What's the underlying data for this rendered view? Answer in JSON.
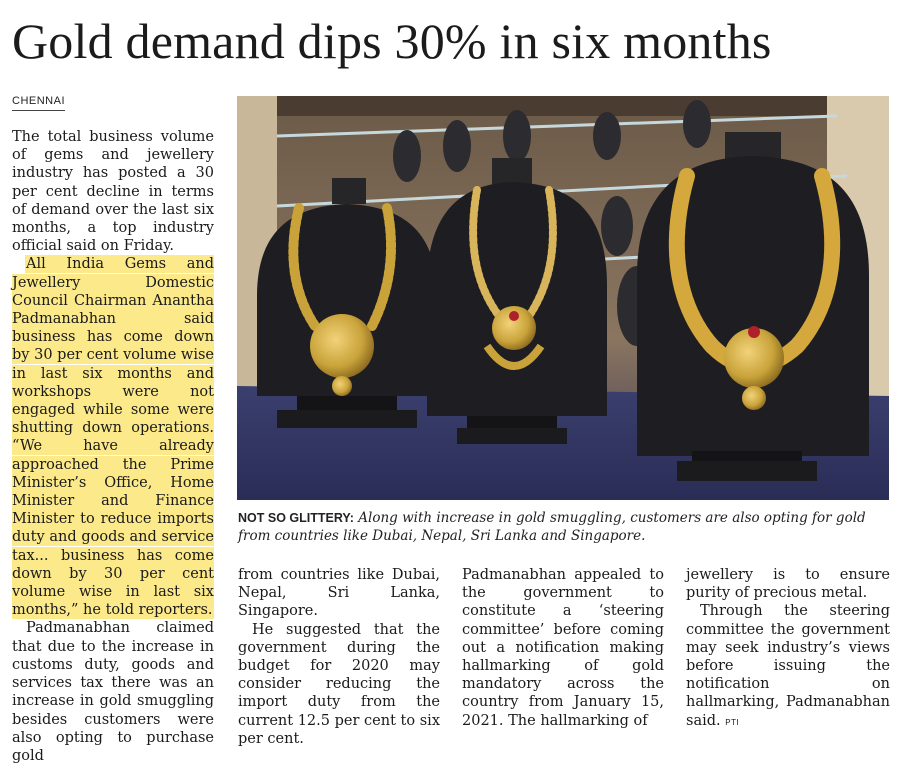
{
  "headline": "Gold demand dips 30% in six months",
  "dateline": "CHENNAI",
  "photo": {
    "caption_tag": "NOT SO GLITTERY:",
    "caption_text": " Along with increase in gold smuggling, customers are also opting for gold from countries like Dubai, Nepal, Sri Lanka and Singapore."
  },
  "article": {
    "p1": "The total business volume of gems and jewellery industry has posted a 30 per cent decline in terms of demand over the last six months, a top industry official said on Friday.",
    "p2": "All India Gems and Jewellery Domestic Council Chairman Anantha Padmanabhan said business has come down by 30 per cent volume wise in last six months and workshops were not engaged while some were shutting down operations. “We have already approached the Prime Minister’s Office, Home Minister and Finance Minister to reduce imports duty and goods and service tax... business has come down by 30 per cent volume wise in last six months,” he told reporters.",
    "p3": "Padmanabhan claimed that due to the increase in customs duty, goods and services tax there was an increase in gold smuggling besides customers were also opting to purchase gold",
    "p3_cont": "from countries like Dubai, Nepal, Sri Lanka, Singapore.",
    "p4": "He suggested that the government during the budget for 2020 may consider reducing the import duty from the current 12.5 per cent to six per cent.",
    "p5": "Padmanabhan appealed to the government to constitute a ‘steering committee’ before coming out a notification making hallmarking of gold mandatory across the country from January 15, 2021. The hallmarking of",
    "p5_cont": "jewellery is to ensure purity of precious metal.",
    "p6": "Through the steering committee the government may seek industry’s views before issuing the notification on hallmarking, Padmanabhan said.",
    "credit": "PTI"
  },
  "colors": {
    "highlight": "#fbe98a",
    "display_bust": "#1e1e22",
    "gold": "#c9a33a"
  }
}
